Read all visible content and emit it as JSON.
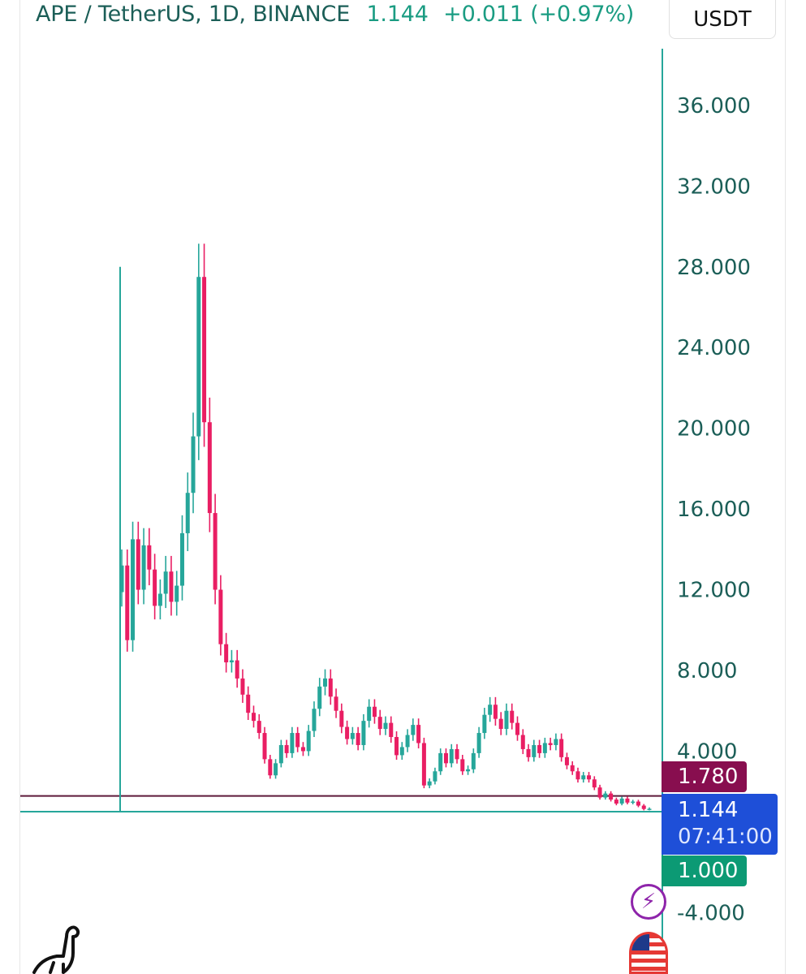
{
  "header": {
    "title": "APE / TetherUS, 1D, BINANCE",
    "price": "1.144",
    "change": "+0.011 (+0.97%)"
  },
  "toolbar": {
    "currency": "USDT"
  },
  "price_labels": {
    "reference": "1.780",
    "last": "1.144",
    "countdown": "07:41:00",
    "support": "1.000"
  },
  "icons": {
    "alert": "lightning-bolt-icon",
    "flag": "us-flag-icon",
    "logo": "dinosaur-logo-icon"
  },
  "colors": {
    "up": "#26a69a",
    "down": "#e91e63",
    "axis_text": "#1b5e57",
    "reference_line": "#5d1a3a",
    "support_line": "#26a69a"
  },
  "chart_data": {
    "type": "candlestick",
    "symbol": "APE/USDT",
    "interval": "1D",
    "exchange": "BINANCE",
    "ylim": [
      -6,
      40
    ],
    "yticks": [
      "36.000",
      "32.000",
      "28.000",
      "24.000",
      "20.000",
      "16.000",
      "12.000",
      "8.000",
      "4.000",
      "-4.000"
    ],
    "yticks_values": [
      36,
      32,
      28,
      24,
      20,
      16,
      12,
      8,
      4,
      -4
    ],
    "horizontal_lines": [
      1.78,
      1.0
    ],
    "vertical_line_value_range": [
      1.0,
      28
    ],
    "series": [
      {
        "values": [
          13.2,
          9.5,
          14.5,
          12.0,
          14.2,
          13.0,
          11.2,
          11.8,
          12.9,
          11.4,
          12.2,
          14.8,
          16.8,
          19.6,
          27.5,
          20.3,
          15.8,
          12.0,
          9.3,
          8.4,
          8.5,
          7.6,
          6.8,
          5.9,
          5.5,
          4.9,
          3.6,
          2.8,
          3.4,
          4.3,
          3.9,
          4.9,
          4.2,
          4.0,
          5.0,
          6.1,
          7.2,
          7.6,
          6.7,
          6.0,
          5.2,
          4.6,
          4.9,
          4.3,
          5.5,
          6.2,
          5.7,
          5.1,
          5.4,
          4.7,
          3.8,
          4.2,
          4.8,
          5.3,
          4.4,
          2.3,
          2.5,
          3.0,
          3.9,
          3.4,
          4.1,
          3.6,
          3.0,
          3.1,
          3.9,
          4.9,
          5.8,
          6.3,
          5.6,
          5.1,
          6.0,
          5.4,
          4.8,
          4.1,
          3.7,
          4.3,
          3.9,
          4.4,
          4.3,
          4.6,
          3.7,
          3.3,
          3.0,
          2.6,
          2.8,
          2.6,
          2.2,
          1.7,
          1.9,
          1.6,
          1.4,
          1.65,
          1.45,
          1.5,
          1.3,
          1.133,
          1.144
        ]
      }
    ]
  }
}
